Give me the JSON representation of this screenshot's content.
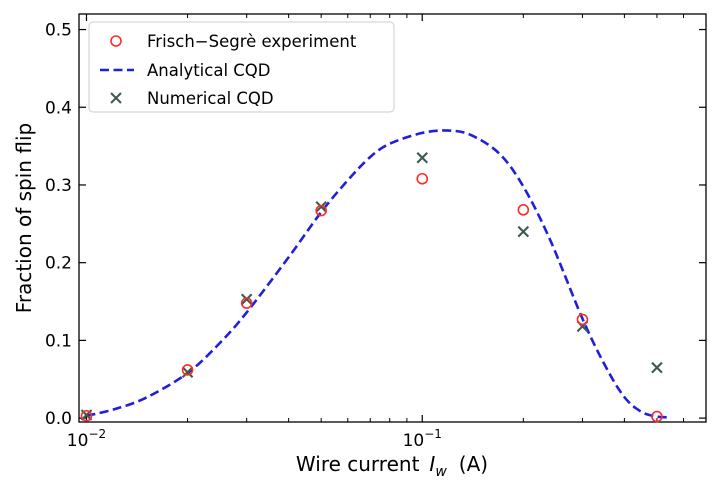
{
  "chart_data": {
    "type": "scatter",
    "title": "",
    "xlabel": "Wire current",
    "xlabel_symbol": "I",
    "xlabel_subscript": "w",
    "xlabel_unit": "(A)",
    "ylabel": "Fraction of spin flip",
    "xscale": "log",
    "xlim": [
      0.0095,
      0.7
    ],
    "ylim": [
      -0.005,
      0.52
    ],
    "x_ticks": [
      {
        "value": 0.01,
        "base": "10",
        "exp": "−2"
      },
      {
        "value": 0.1,
        "base": "10",
        "exp": "−1"
      }
    ],
    "y_ticks": [
      {
        "value": 0.0,
        "label": "0.0"
      },
      {
        "value": 0.1,
        "label": "0.1"
      },
      {
        "value": 0.2,
        "label": "0.2"
      },
      {
        "value": 0.3,
        "label": "0.3"
      },
      {
        "value": 0.4,
        "label": "0.4"
      },
      {
        "value": 0.5,
        "label": "0.5"
      }
    ],
    "legend_position": "top-left",
    "grid": false,
    "series": [
      {
        "name": "Frisch−Segrè experiment",
        "kind": "scatter",
        "marker": "circle",
        "color": "#ff2a2a",
        "points": [
          {
            "x": 0.01,
            "y": 0.003
          },
          {
            "x": 0.02,
            "y": 0.062
          },
          {
            "x": 0.03,
            "y": 0.148
          },
          {
            "x": 0.05,
            "y": 0.267
          },
          {
            "x": 0.1,
            "y": 0.308
          },
          {
            "x": 0.2,
            "y": 0.268
          },
          {
            "x": 0.3,
            "y": 0.127
          },
          {
            "x": 0.5,
            "y": 0.002
          }
        ]
      },
      {
        "name": "Analytical CQD",
        "kind": "line",
        "style": "dashed",
        "color": "#1f1fdc",
        "points": [
          {
            "x": 0.01,
            "y": 0.003
          },
          {
            "x": 0.012,
            "y": 0.011
          },
          {
            "x": 0.015,
            "y": 0.026
          },
          {
            "x": 0.02,
            "y": 0.058
          },
          {
            "x": 0.025,
            "y": 0.097
          },
          {
            "x": 0.03,
            "y": 0.136
          },
          {
            "x": 0.04,
            "y": 0.207
          },
          {
            "x": 0.05,
            "y": 0.265
          },
          {
            "x": 0.06,
            "y": 0.306
          },
          {
            "x": 0.07,
            "y": 0.336
          },
          {
            "x": 0.08,
            "y": 0.353
          },
          {
            "x": 0.1,
            "y": 0.367
          },
          {
            "x": 0.12,
            "y": 0.37
          },
          {
            "x": 0.14,
            "y": 0.364
          },
          {
            "x": 0.17,
            "y": 0.34
          },
          {
            "x": 0.2,
            "y": 0.298
          },
          {
            "x": 0.24,
            "y": 0.23
          },
          {
            "x": 0.3,
            "y": 0.128
          },
          {
            "x": 0.35,
            "y": 0.068
          },
          {
            "x": 0.4,
            "y": 0.027
          },
          {
            "x": 0.45,
            "y": 0.008
          },
          {
            "x": 0.5,
            "y": 0.002
          },
          {
            "x": 0.55,
            "y": 0.001
          }
        ]
      },
      {
        "name": "Numerical CQD",
        "kind": "scatter",
        "marker": "x",
        "color": "#3f5a4e",
        "points": [
          {
            "x": 0.01,
            "y": 0.004
          },
          {
            "x": 0.02,
            "y": 0.059
          },
          {
            "x": 0.03,
            "y": 0.153
          },
          {
            "x": 0.05,
            "y": 0.272
          },
          {
            "x": 0.1,
            "y": 0.335
          },
          {
            "x": 0.2,
            "y": 0.24
          },
          {
            "x": 0.3,
            "y": 0.118
          },
          {
            "x": 0.5,
            "y": 0.065
          }
        ]
      }
    ]
  }
}
